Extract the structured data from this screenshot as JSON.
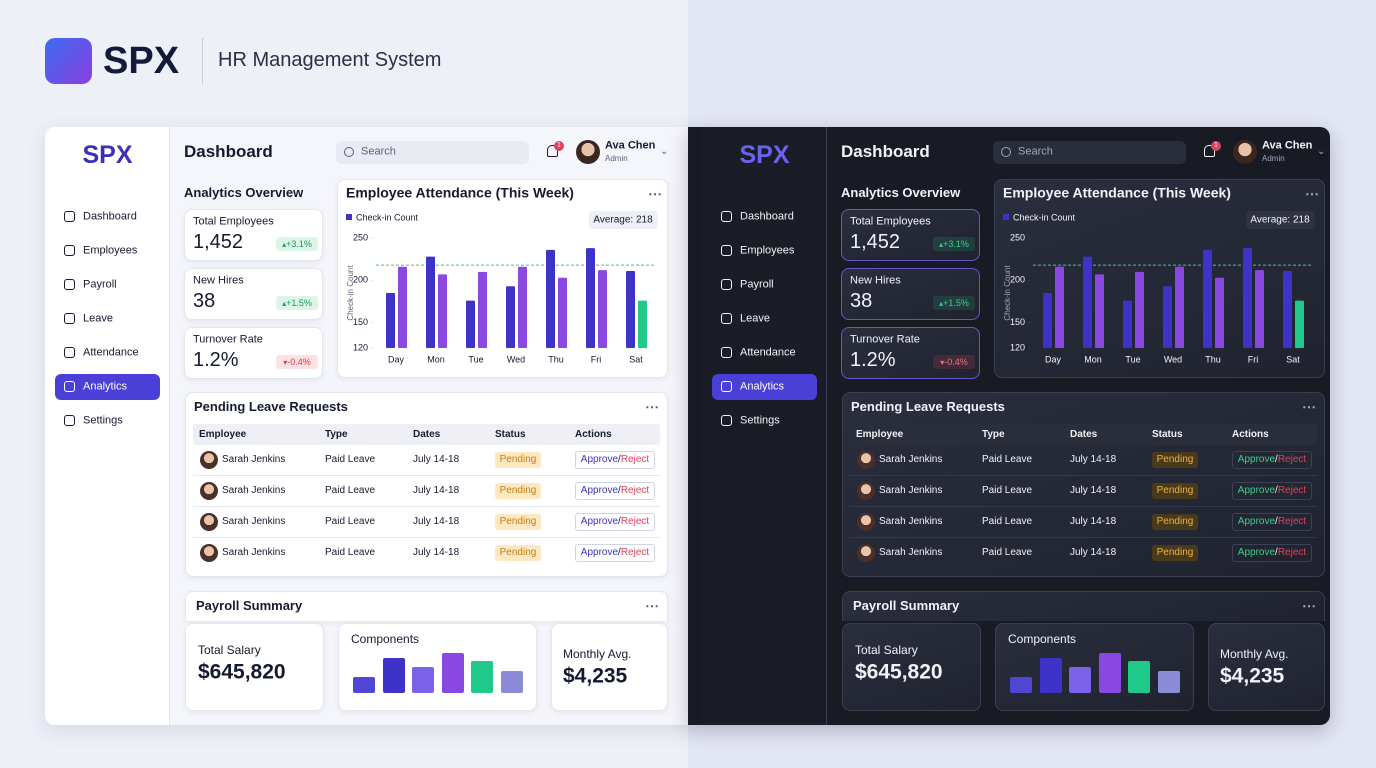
{
  "header": {
    "brand": "SPX",
    "title": "HR Management System"
  },
  "sidebar": {
    "brand": "SPX",
    "nav": [
      "Dashboard",
      "Employees",
      "Payroll",
      "Leave",
      "Attendance",
      "Analytics",
      "Settings"
    ],
    "active": "Analytics"
  },
  "topbar": {
    "title": "Dashboard",
    "search": "Search",
    "notifications": 1,
    "user": "Ava Chen",
    "role": "Admin"
  },
  "analytics": {
    "heading": "Analytics Overview",
    "kpis": [
      {
        "label": "Total Employees",
        "value": "1,452",
        "change": "+3.1%"
      },
      {
        "label": "New Hires",
        "value": "38",
        "change": "+1.5%"
      },
      {
        "label": "Turnover Rate",
        "value": "1.2%",
        "change": "-0.4%"
      }
    ]
  },
  "chart_data": {
    "type": "bar",
    "title": "Employee Attendance (This Week)",
    "ylabel": "Check-in Count",
    "categories": [
      "Day",
      "Mon",
      "Tue",
      "Wed",
      "Thu",
      "Fri",
      "Sat"
    ],
    "series": [
      {
        "name": "Check-in Count",
        "color": "#3d33c8",
        "values": [
          185,
          228,
          176,
          193,
          236,
          238,
          211
        ]
      },
      {
        "color": "#8a48e2",
        "colors": [
          "#8a48e2",
          "#8a48e2",
          "#8a48e2",
          "#8a48e2",
          "#8a48e2",
          "#8a48e2",
          "#1fc98a"
        ],
        "values": [
          216,
          207,
          210,
          216,
          203,
          212,
          176
        ]
      }
    ],
    "ylim": [
      120,
      250
    ],
    "yticks": [
      120,
      150,
      200,
      250
    ],
    "average": {
      "value": 218,
      "label": "Average: 218"
    }
  },
  "leave": {
    "heading": "Pending Leave Requests",
    "columns": [
      "Employee",
      "Type",
      "Dates",
      "Status",
      "Actions"
    ],
    "rows": [
      [
        "Sarah Jenkins",
        "Paid Leave",
        "July 14-18",
        "Pending"
      ],
      [
        "Sarah Jenkins",
        "Paid Leave",
        "July 14-18",
        "Pending"
      ],
      [
        "Sarah Jenkins",
        "Paid Leave",
        "July 14-18",
        "Pending"
      ],
      [
        "Sarah Jenkins",
        "Paid Leave",
        "July 14-18",
        "Pending"
      ]
    ],
    "actions": [
      "Approve",
      "Reject"
    ],
    "action_separator": "/"
  },
  "payroll": {
    "heading": "Payroll Summary",
    "total": {
      "label": "Total Salary",
      "value": "$645,820"
    },
    "components": {
      "label": "Components",
      "values": [
        40,
        88,
        65,
        100,
        80,
        55
      ],
      "colors": [
        "#5046d6",
        "#3d33c8",
        "#7b62e8",
        "#8a48e2",
        "#1fc98a",
        "#8b8bd8"
      ]
    },
    "monthly": {
      "label": "Monthly Avg.",
      "value": "$4,235"
    }
  }
}
